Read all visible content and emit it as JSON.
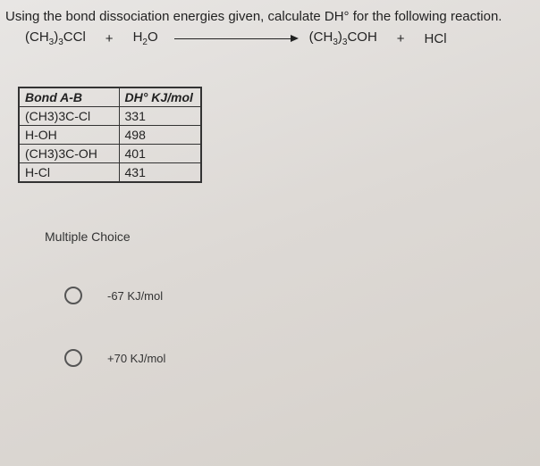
{
  "question": {
    "prompt": "Using the bond dissociation energies given, calculate DH° for the following reaction.",
    "reactant1_html": "(CH<span class='sub'>3</span>)<span class='sub'>3</span>CCl",
    "plus": "+",
    "reactant2_html": "H<span class='sub'>2</span>O",
    "product1_html": "(CH<span class='sub'>3</span>)<span class='sub'>3</span>COH",
    "product2_html": "HCl"
  },
  "table": {
    "header_col1": "Bond A-B",
    "header_col2_html": "DH° KJ/mol",
    "rows": [
      {
        "bond": "(CH3)3C-Cl",
        "value": "331"
      },
      {
        "bond": "H-OH",
        "value": "498"
      },
      {
        "bond": "(CH3)3C-OH",
        "value": "401"
      },
      {
        "bond": "H-Cl",
        "value": "431"
      }
    ],
    "border_color": "#333333"
  },
  "multiple_choice": {
    "heading": "Multiple Choice",
    "options": [
      {
        "label": "-67 KJ/mol"
      },
      {
        "label": "+70 KJ/mol"
      }
    ]
  },
  "colors": {
    "text": "#222222",
    "background_light": "#e8e6e4",
    "background_dark": "#d6d1cb"
  }
}
